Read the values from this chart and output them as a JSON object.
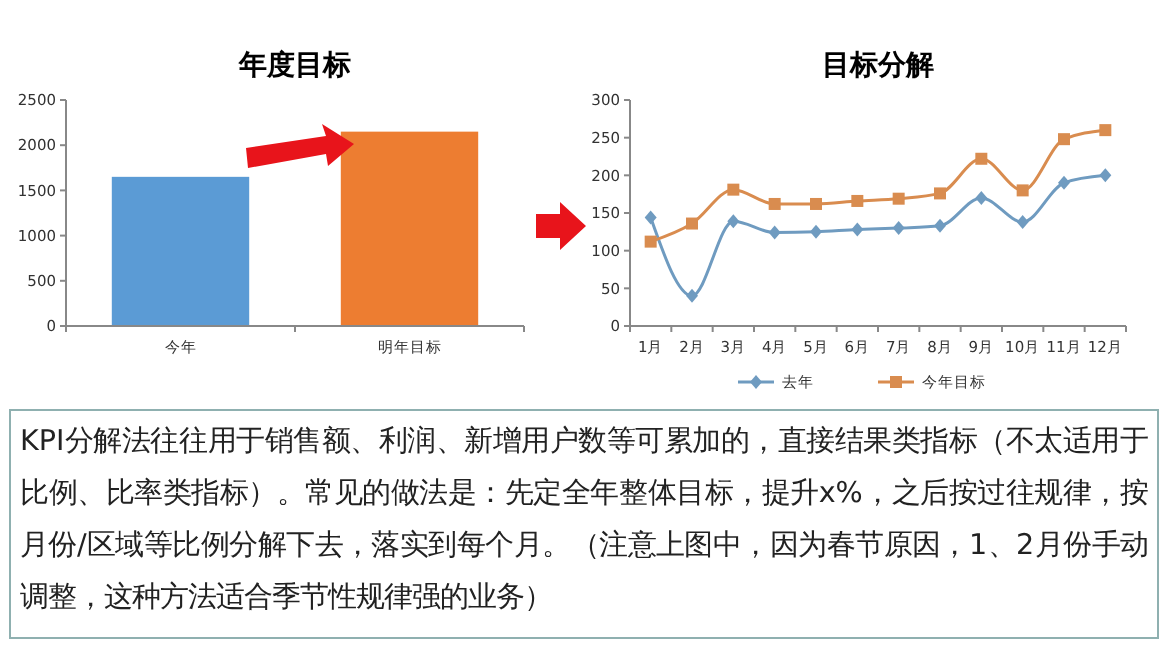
{
  "chart_data": [
    {
      "type": "bar",
      "title": "年度目标",
      "categories": [
        "今年",
        "明年目标"
      ],
      "values": [
        1650,
        2150
      ],
      "colors": [
        "#5b9bd5",
        "#ed7d31"
      ],
      "ylim": [
        0,
        2500
      ],
      "yticks": [
        0,
        500,
        1000,
        1500,
        2000,
        2500
      ],
      "grid": false
    },
    {
      "type": "line",
      "title": "目标分解",
      "categories": [
        "1月",
        "2月",
        "3月",
        "4月",
        "5月",
        "6月",
        "7月",
        "8月",
        "9月",
        "10月",
        "11月",
        "12月"
      ],
      "series": [
        {
          "name": "去年",
          "color": "#6f9bc0",
          "marker": "diamond",
          "values": [
            144,
            40,
            139,
            124,
            125,
            128,
            130,
            133,
            170,
            138,
            190,
            200
          ]
        },
        {
          "name": "今年目标",
          "color": "#d98c4f",
          "marker": "square",
          "values": [
            112,
            136,
            181,
            162,
            162,
            166,
            169,
            176,
            222,
            180,
            248,
            260
          ]
        }
      ],
      "ylim": [
        0,
        300
      ],
      "yticks": [
        0,
        50,
        100,
        150,
        200,
        250,
        300
      ],
      "grid": false,
      "legend": "bottom"
    },
    {
      "type": "other",
      "annotations": [
        "KPI分解法往往用于销售额、利润、新增用户数等可累加的，直接结果类指标（不太适用于比例、比率类指标）。常见的做法是：先定全年整体目标，提升x%，之后按过往规律，按月份/区域等比例分解下去，落实到每个月。（注意上图中，因为春节原因，1、2月份手动调整，这种方法适合季节性规律强的业务）"
      ]
    }
  ]
}
